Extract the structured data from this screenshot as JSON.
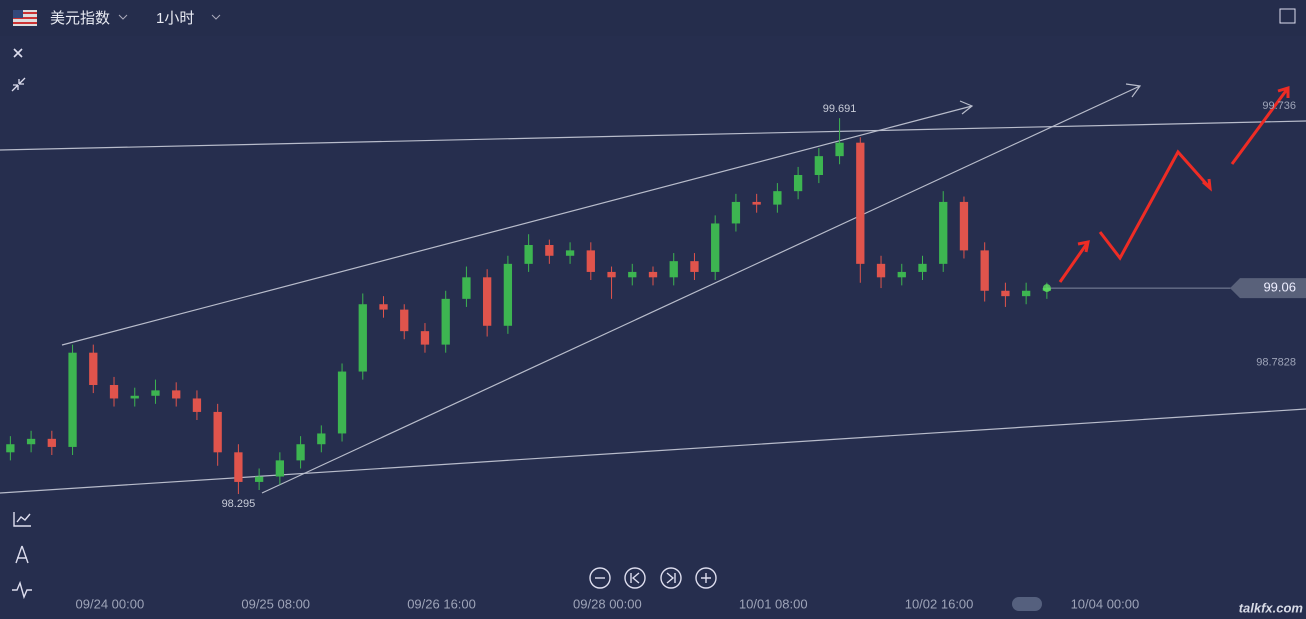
{
  "header": {
    "instrument": "美元指数",
    "interval": "1小时"
  },
  "chart_data": {
    "type": "candlestick",
    "open": [
      98.45,
      98.48,
      98.5,
      98.47,
      98.82,
      98.7,
      98.65,
      98.66,
      98.68,
      98.65,
      98.6,
      98.45,
      98.34,
      98.36,
      98.42,
      98.48,
      98.52,
      98.75,
      99.0,
      98.98,
      98.9,
      98.85,
      99.02,
      99.1,
      98.92,
      99.15,
      99.22,
      99.18,
      99.2,
      99.12,
      99.1,
      99.12,
      99.1,
      99.16,
      99.12,
      99.3,
      99.38,
      99.37,
      99.42,
      99.48,
      99.55,
      99.6,
      99.15,
      99.1,
      99.12,
      99.15,
      99.38,
      99.2,
      99.05,
      99.03,
      99.05
    ],
    "high": [
      98.51,
      98.53,
      98.53,
      98.85,
      98.85,
      98.73,
      98.69,
      98.72,
      98.71,
      98.68,
      98.63,
      98.48,
      98.39,
      98.45,
      98.51,
      98.55,
      98.78,
      99.04,
      99.03,
      99.0,
      98.93,
      99.05,
      99.14,
      99.13,
      99.18,
      99.26,
      99.24,
      99.23,
      99.23,
      99.14,
      99.15,
      99.14,
      99.19,
      99.19,
      99.33,
      99.41,
      99.41,
      99.45,
      99.51,
      99.58,
      99.691,
      99.62,
      99.18,
      99.15,
      99.18,
      99.42,
      99.4,
      99.23,
      99.08,
      99.08,
      99.08
    ],
    "low": [
      98.42,
      98.45,
      98.44,
      98.44,
      98.67,
      98.62,
      98.62,
      98.63,
      98.62,
      98.57,
      98.4,
      98.295,
      98.31,
      98.33,
      98.39,
      98.45,
      98.49,
      98.72,
      98.95,
      98.87,
      98.82,
      98.82,
      98.99,
      98.88,
      98.89,
      99.12,
      99.15,
      99.15,
      99.09,
      99.02,
      99.07,
      99.07,
      99.07,
      99.09,
      99.09,
      99.27,
      99.34,
      99.34,
      99.39,
      99.45,
      99.52,
      99.08,
      99.06,
      99.07,
      99.09,
      99.12,
      99.17,
      99.01,
      98.99,
      99.0,
      99.02
    ],
    "close": [
      98.48,
      98.5,
      98.47,
      98.82,
      98.7,
      98.65,
      98.66,
      98.68,
      98.65,
      98.6,
      98.45,
      98.34,
      98.36,
      98.42,
      98.48,
      98.52,
      98.75,
      99.0,
      98.98,
      98.9,
      98.85,
      99.02,
      99.1,
      98.92,
      99.15,
      99.22,
      99.18,
      99.2,
      99.12,
      99.1,
      99.12,
      99.1,
      99.16,
      99.12,
      99.3,
      99.38,
      99.37,
      99.42,
      99.48,
      99.55,
      99.6,
      99.15,
      99.1,
      99.12,
      99.15,
      99.38,
      99.2,
      99.05,
      99.03,
      99.05,
      99.06
    ],
    "up_color": "#3db551",
    "down_color": "#e0544c",
    "xlim": [
      -0.5,
      62.5
    ],
    "xticks": [
      {
        "value": 4.8,
        "label": "09/24 00:00"
      },
      {
        "value": 12.8,
        "label": "09/25 08:00"
      },
      {
        "value": 20.8,
        "label": "09/26 16:00"
      },
      {
        "value": 28.8,
        "label": "09/28 00:00"
      },
      {
        "value": 36.8,
        "label": "10/01 08:00"
      },
      {
        "value": 44.8,
        "label": "10/02 16:00"
      },
      {
        "value": 52.8,
        "label": "10/04 00:00"
      }
    ],
    "ylim": [
      98.05,
      100.13
    ],
    "yticks": [
      99.736,
      98.7828
    ],
    "watermark": "talkfx.com"
  }
}
